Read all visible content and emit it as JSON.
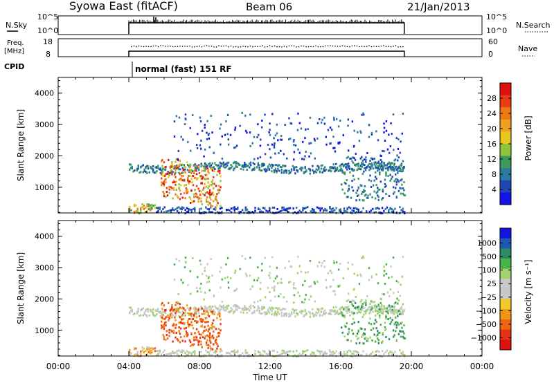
{
  "header": {
    "title": "Syowa East (fitACF)",
    "beam": "Beam 06",
    "date": "21/Jan/2013"
  },
  "aux_panels": {
    "nsky": {
      "label": "N.Sky",
      "tick_top": "10^5",
      "tick_bottom": "10^0",
      "right_label": "N.Search",
      "right_tick_top": "10^5",
      "right_tick_bottom": "10^0"
    },
    "freq": {
      "label_line1": "Freq.",
      "label_line2": "[MHz]",
      "tick_top": "18",
      "tick_bottom": "8",
      "right_label": "Nave",
      "right_tick_top": "60",
      "right_tick_bottom": "0"
    },
    "cpid": {
      "label": "CPID",
      "mode_text": "normal (fast) 151 RF"
    }
  },
  "chart_data": [
    {
      "type": "heatmap",
      "name": "power",
      "ylabel": "Slant Range [km]",
      "xlabel": "",
      "x_range_hours": [
        0,
        24
      ],
      "ylim": [
        180,
        4500
      ],
      "yticks": [
        "1000",
        "2000",
        "3000",
        "4000"
      ],
      "colorbar": {
        "label": "Power [dB]",
        "ticks": [
          "4",
          "8",
          "12",
          "16",
          "20",
          "24",
          "28"
        ],
        "colors": [
          "#1414e6",
          "#1e46b4",
          "#2a7aa0",
          "#3a9a5c",
          "#8fc43a",
          "#e8c81e",
          "#f0a020",
          "#f07814",
          "#ea3c14",
          "#e01010"
        ]
      },
      "data_extent_hours": [
        4.0,
        19.6
      ]
    },
    {
      "type": "heatmap",
      "name": "velocity",
      "ylabel": "Slant Range [km]",
      "xlabel": "Time UT",
      "x_range_hours": [
        0,
        24
      ],
      "xticks": [
        "00:00",
        "04:00",
        "08:00",
        "12:00",
        "16:00",
        "20:00",
        "00:00"
      ],
      "ylim": [
        180,
        4500
      ],
      "yticks": [
        "1000",
        "2000",
        "3000",
        "4000"
      ],
      "colorbar": {
        "label": "Velocity [m s⁻¹]",
        "ticks": [
          "1000",
          "500",
          "100",
          "25",
          "−25",
          "−100",
          "−500",
          "−1000"
        ],
        "colors": [
          "#1414e0",
          "#1e5ab4",
          "#2e8a64",
          "#46b446",
          "#a0d26e",
          "#c8c8c8",
          "#c8c8c8",
          "#f0c828",
          "#f09614",
          "#f06414",
          "#e63214",
          "#e01010"
        ]
      },
      "data_extent_hours": [
        4.0,
        19.6
      ]
    }
  ]
}
